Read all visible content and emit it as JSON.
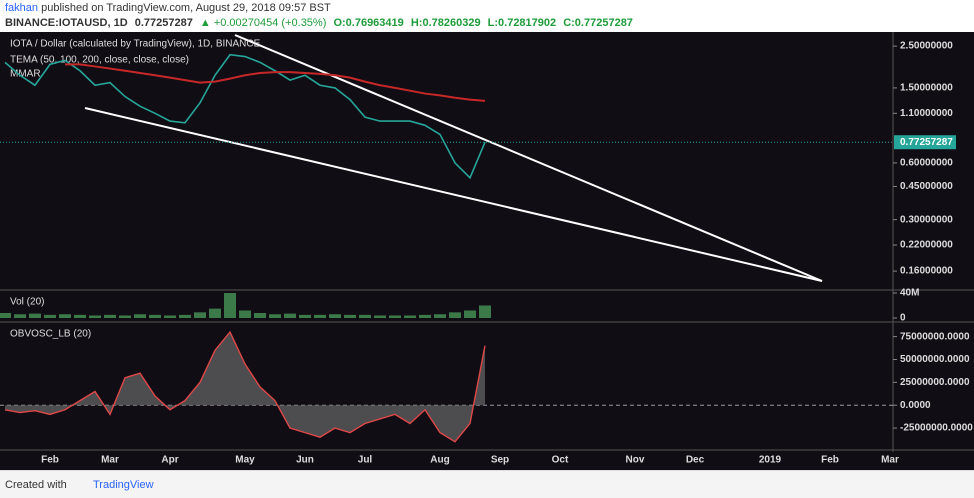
{
  "header": {
    "author": "fakhan",
    "published": "published on TradingView.com, August 29, 2018 09:57 BST",
    "symbol": "BINANCE:IOTAUSD, 1D",
    "last": "0.77257287",
    "change": "▲ +0.00270454 (+0.35%)",
    "open": "O:0.76963419",
    "high": "H:0.78260329",
    "low": "L:0.72817902",
    "close": "C:0.77257287"
  },
  "chart_data": [
    {
      "type": "line",
      "log_scale": true,
      "indicator": "TEMA (50, 100, 200, close, close, close)",
      "categories": [
        null,
        null,
        null,
        "Feb",
        null,
        null,
        null,
        "Mar",
        null,
        null,
        null,
        "Apr",
        null,
        null,
        null,
        null,
        "May",
        null,
        null,
        null,
        "Jun",
        null,
        null,
        null,
        "Jul",
        null,
        null,
        null,
        null,
        "Aug",
        null,
        null,
        null,
        "Sep",
        null,
        null,
        null,
        "Oct",
        null,
        null,
        null,
        null,
        "Nov",
        null,
        null,
        null,
        "Dec",
        null,
        null,
        null,
        null,
        "2019",
        null,
        null,
        null,
        "Feb",
        null,
        null,
        null,
        "Mar"
      ],
      "series": [
        {
          "name": "IOTA / Dollar (calculated by TradingView), 1D, BINANCE",
          "color": "#26a69a",
          "values": [
            2.05,
            1.75,
            1.55,
            2.0,
            2.1,
            1.85,
            1.55,
            1.6,
            1.35,
            1.2,
            1.1,
            1.0,
            0.98,
            1.25,
            1.75,
            2.25,
            2.2,
            2.05,
            1.85,
            1.65,
            1.75,
            1.55,
            1.5,
            1.3,
            1.05,
            1.0,
            1.0,
            1.0,
            0.95,
            0.85,
            0.6,
            0.5,
            0.77257287,
            null,
            null,
            null,
            null,
            null,
            null,
            null,
            null,
            null,
            null,
            null,
            null,
            null,
            null,
            null,
            null,
            null,
            null,
            null,
            null,
            null,
            null,
            null,
            null,
            null,
            null,
            null
          ]
        },
        {
          "name": "MMAR",
          "color": "#c62828",
          "values": [
            null,
            null,
            null,
            null,
            2.0,
            2.0,
            1.95,
            1.9,
            1.85,
            1.8,
            1.75,
            1.7,
            1.65,
            1.6,
            1.62,
            1.68,
            1.75,
            1.8,
            1.82,
            1.82,
            1.8,
            1.78,
            1.75,
            1.7,
            1.62,
            1.55,
            1.5,
            1.45,
            1.4,
            1.37,
            1.33,
            1.3,
            1.28,
            null,
            null,
            null,
            null,
            null,
            null,
            null,
            null,
            null,
            null,
            null,
            null,
            null,
            null,
            null,
            null,
            null,
            null,
            null,
            null,
            null,
            null,
            null,
            null,
            null,
            null,
            null
          ]
        }
      ],
      "last_value": 0.77257287,
      "ylim": [
        0.127,
        2.97
      ],
      "yticks": [
        {
          "value": 2.5,
          "label": "2.50000000"
        },
        {
          "value": 1.5,
          "label": "1.50000000"
        },
        {
          "value": 1.1,
          "label": "1.10000000"
        },
        {
          "value": 0.6,
          "label": "0.60000000"
        },
        {
          "value": 0.45,
          "label": "0.45000000"
        },
        {
          "value": 0.3,
          "label": "0.30000000"
        },
        {
          "value": 0.22,
          "label": "0.22000000"
        },
        {
          "value": 0.16,
          "label": "0.16000000"
        }
      ]
    },
    {
      "type": "bar",
      "title": "Vol (20)",
      "color": "#3c7a4a",
      "values": [
        8000000,
        6000000,
        7000000,
        5000000,
        6000000,
        5000000,
        4000000,
        5000000,
        4000000,
        6000000,
        5000000,
        4000000,
        5000000,
        9000000,
        15000000,
        40000000,
        12000000,
        8000000,
        6000000,
        7000000,
        5000000,
        5000000,
        6000000,
        5000000,
        5000000,
        4000000,
        4000000,
        4000000,
        5000000,
        6000000,
        9000000,
        12000000,
        20000000,
        null,
        null,
        null,
        null,
        null,
        null,
        null,
        null,
        null,
        null,
        null,
        null,
        null,
        null,
        null,
        null,
        null,
        null,
        null,
        null,
        null,
        null,
        null,
        null,
        null,
        null,
        null
      ],
      "ylim": [
        -6400000,
        44800000
      ],
      "yticks": [
        {
          "value": 40000000,
          "label": "40M"
        },
        0
      ]
    },
    {
      "type": "area",
      "title": "OBVOSC_LB (20)",
      "color": "#e04848",
      "values": [
        -5000000,
        -8000000,
        -6000000,
        -10000000,
        -5000000,
        5000000,
        15000000,
        -10000000,
        30000000,
        35000000,
        10000000,
        -5000000,
        5000000,
        25000000,
        60000000,
        80000000,
        45000000,
        20000000,
        5000000,
        -25000000,
        -30000000,
        -35000000,
        -25000000,
        -30000000,
        -20000000,
        -15000000,
        -10000000,
        -20000000,
        -5000000,
        -30000000,
        -40000000,
        -20000000,
        65000000,
        null,
        null,
        null,
        null,
        null,
        null,
        null,
        null,
        null,
        null,
        null,
        null,
        null,
        null,
        null,
        null,
        null,
        null,
        null,
        null,
        null,
        null,
        null,
        null,
        null,
        null,
        null
      ],
      "ylim": [
        -49000000,
        91000000
      ],
      "yticks": [
        {
          "value": 75000000,
          "label": "75000000.0000"
        },
        {
          "value": 50000000,
          "label": "50000000.0000"
        },
        {
          "value": 25000000,
          "label": "25000000.0000"
        },
        {
          "value": 0,
          "label": "0.0000"
        },
        {
          "value": -25000000,
          "label": "-25000000.0000"
        }
      ]
    }
  ],
  "footer": {
    "created": "Created with",
    "brand": "TradingView"
  }
}
